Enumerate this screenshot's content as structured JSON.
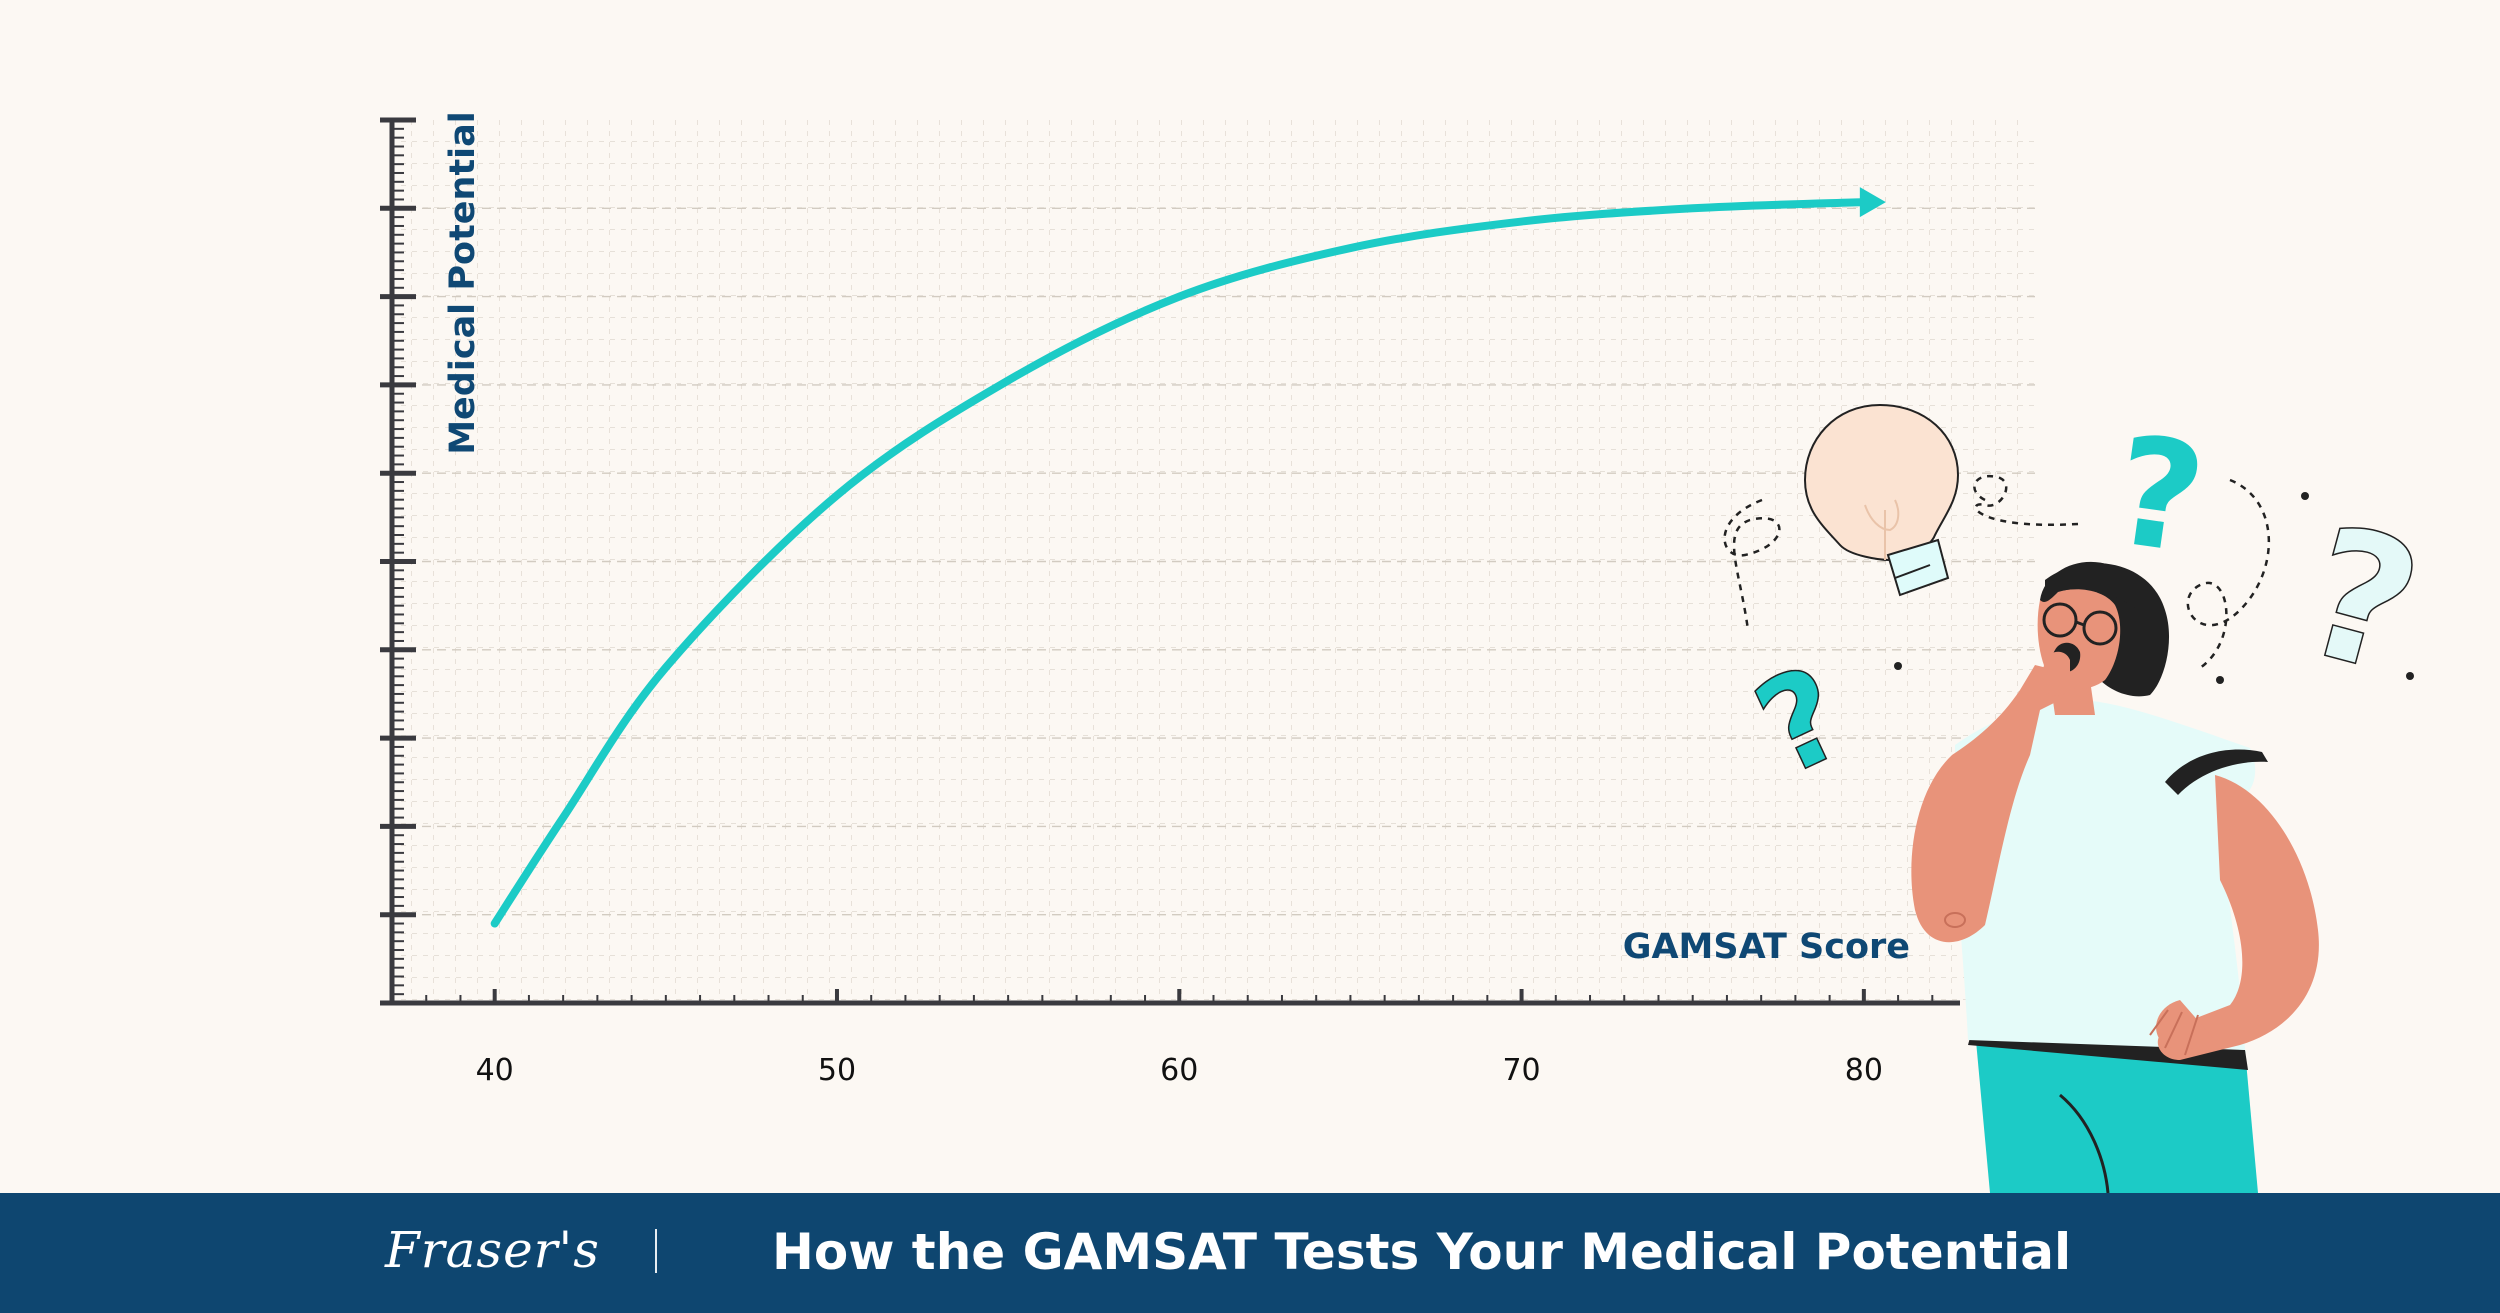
{
  "colors": {
    "background": "#fcf8f3",
    "accent": "#1ccbc6",
    "navy": "#0e4670",
    "axis": "#3a3a3f",
    "skin": "#e8937a",
    "shirt": "#e5fbf9"
  },
  "chart_data": {
    "type": "line",
    "title": "",
    "xlabel": "GAMSAT Score",
    "ylabel": "Medical Potential",
    "x_ticks": [
      "40",
      "50",
      "60",
      "70",
      "80"
    ],
    "xlim": [
      37,
      85
    ],
    "grid": true,
    "series": [
      {
        "x": [
          40,
          42,
          45,
          50,
          55,
          60,
          65,
          70,
          75,
          80
        ],
        "y": [
          0.9,
          2.1,
          3.8,
          5.75,
          7.05,
          8.0,
          8.55,
          8.85,
          9.0,
          9.07
        ]
      }
    ],
    "ylim": [
      0,
      10
    ],
    "arrow_end": true
  },
  "illustration": {
    "icons": [
      "person-thinking-icon",
      "lightbulb-icon",
      "question-mark-icon"
    ]
  },
  "footer": {
    "brand": "Fraser's",
    "title": "How the GAMSAT Tests Your Medical Potential"
  }
}
